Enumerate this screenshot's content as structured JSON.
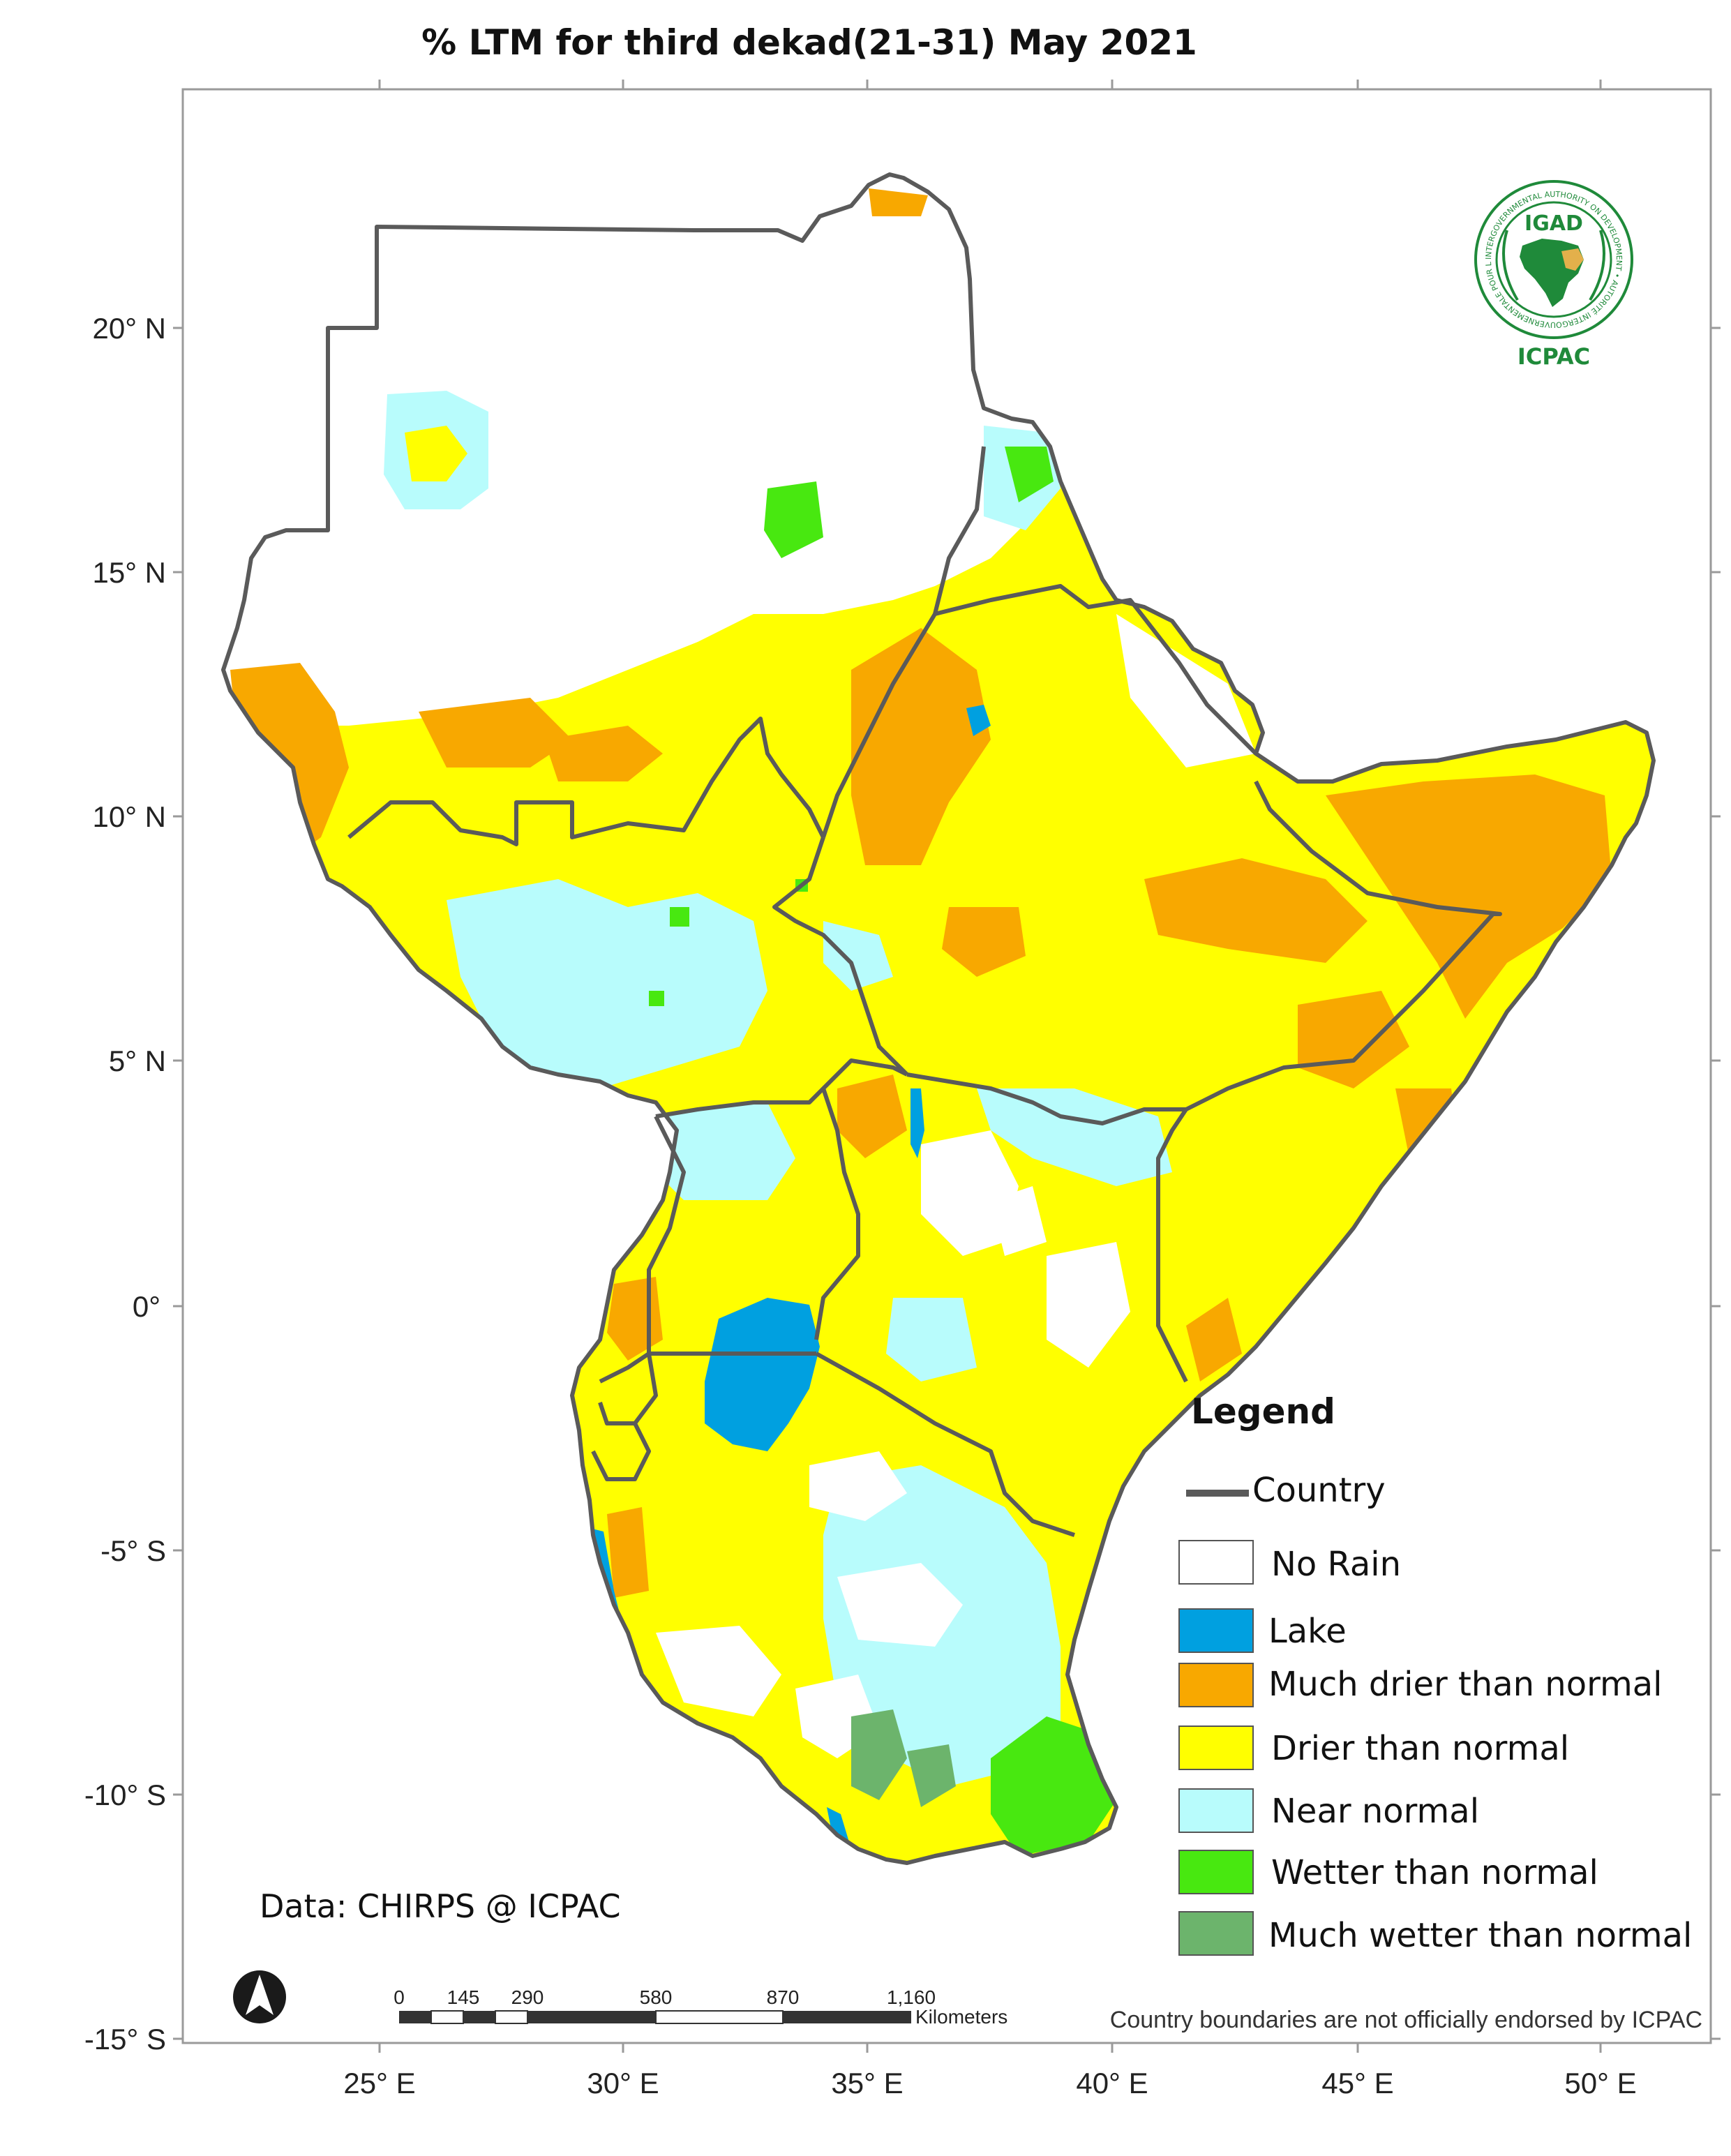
{
  "title": "% LTM  for  third  dekad(21-31) May  2021",
  "axes": {
    "lat_labels": [
      "20° N",
      "15° N",
      "10° N",
      "5° N",
      "0°",
      "-5° S",
      "-10° S",
      "-15° S"
    ],
    "lon_labels": [
      "25° E",
      "30° E",
      "35° E",
      "40° E",
      "45° E",
      "50° E"
    ]
  },
  "logo": {
    "top_text": "IGAD",
    "bottom_text": "ICPAC",
    "ring_text": "INTERGOVERNMENTAL AUTHORITY ON DEVELOPMENT • AUTORITÉ INTERGOUVERNEMENTALE POUR LE DÉVELOPPEMENT"
  },
  "legend": {
    "heading": "Legend",
    "country_label": "Country",
    "items": [
      {
        "label": "No Rain",
        "color": "#ffffff"
      },
      {
        "label": "Lake",
        "color": "#00a0e0"
      },
      {
        "label": "Much drier than normal",
        "color": "#f8a800"
      },
      {
        "label": "Drier than normal",
        "color": "#ffff00"
      },
      {
        "label": "Near normal",
        "color": "#b8fcfc"
      },
      {
        "label": "Wetter than normal",
        "color": "#48e810"
      },
      {
        "label": "Much wetter than normal",
        "color": "#6cb46c"
      }
    ]
  },
  "data_credit": "Data: CHIRPS @ ICPAC",
  "scale_bar": {
    "ticks": [
      "0",
      "145",
      "290",
      "580",
      "870",
      "1,160"
    ],
    "unit": "Kilometers"
  },
  "disclaimer": "Country boundaries are not officially endorsed by ICPAC",
  "colors": {
    "no_rain": "#ffffff",
    "lake": "#00a0e0",
    "much_drier": "#f8a800",
    "drier": "#ffff00",
    "near_normal": "#b8fcfc",
    "wetter": "#48e810",
    "much_wetter": "#6cb46c",
    "boundary": "#5a5a5a",
    "logo_green": "#1f8a3a"
  }
}
